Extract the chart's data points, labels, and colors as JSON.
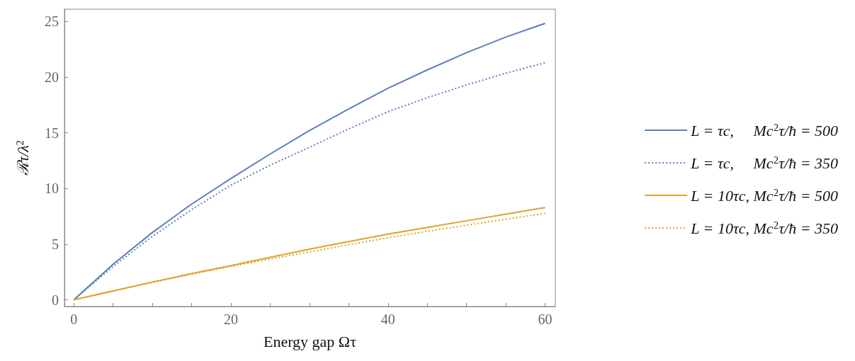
{
  "chart_data": {
    "type": "line",
    "xlabel": "Energy gap Ωτ",
    "ylabel": "ℛτ/λ$^{2}$",
    "x": [
      0,
      5,
      10,
      15,
      20,
      25,
      30,
      35,
      40,
      45,
      50,
      55,
      60
    ],
    "series": [
      {
        "name": "L = τc,     Mc$^{2}$τ/ħ = 500",
        "color": "#5b7fb9",
        "line_style": "solid",
        "values": [
          0,
          3.2,
          6.05,
          8.6,
          10.9,
          13.1,
          15.2,
          17.15,
          19.0,
          20.65,
          22.2,
          23.6,
          24.83
        ]
      },
      {
        "name": "L = τc,     Mc$^{2}$τ/ħ = 350",
        "color": "#5b7fb9",
        "line_style": "dotted",
        "values": [
          0,
          3.0,
          5.7,
          8.1,
          10.3,
          12.1,
          13.7,
          15.35,
          16.9,
          18.15,
          19.3,
          20.35,
          21.3
        ]
      },
      {
        "name": "L = 10τc, Mc$^{2}$τ/ħ = 500",
        "color": "#e3a02b",
        "line_style": "solid",
        "values": [
          0,
          0.8,
          1.6,
          2.35,
          3.07,
          3.82,
          4.55,
          5.23,
          5.9,
          6.5,
          7.1,
          7.7,
          8.29
        ]
      },
      {
        "name": "L = 10τc, Mc$^{2}$τ/ħ = 350",
        "color": "#e3a02b",
        "line_style": "dotted",
        "values": [
          0,
          0.79,
          1.56,
          2.3,
          3.0,
          3.66,
          4.3,
          4.95,
          5.58,
          6.15,
          6.7,
          7.24,
          7.76
        ]
      }
    ],
    "xlim": [
      -1.2,
      61.3
    ],
    "ylim": [
      -0.6,
      26.1
    ],
    "xticks": [
      0,
      {
        "value": 5,
        "label": null
      },
      {
        "value": 10,
        "label": null
      },
      {
        "value": 15,
        "label": null
      },
      20,
      {
        "value": 25,
        "label": null
      },
      {
        "value": 30,
        "label": null
      },
      {
        "value": 35,
        "label": null
      },
      40,
      {
        "value": 45,
        "label": null
      },
      {
        "value": 50,
        "label": null
      },
      {
        "value": 55,
        "label": null
      },
      60
    ],
    "yticks": [
      0,
      5,
      10,
      15,
      20,
      25
    ],
    "grid": false,
    "legend": "right",
    "marker": "none"
  }
}
